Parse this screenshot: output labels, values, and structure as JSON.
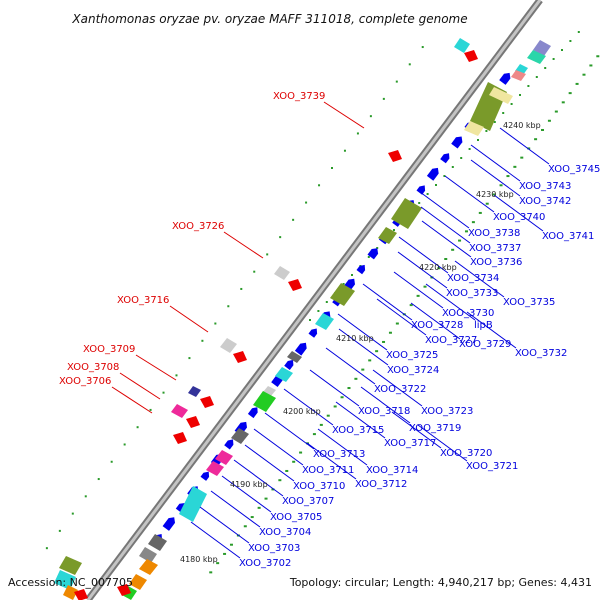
{
  "header": {
    "title": "Xanthomonas oryzae pv. oryzae MAFF 311018, complete genome"
  },
  "footer": {
    "accession": "Accession: NC_007705",
    "summary": "Topology: circular; Length: 4,940,217 bp; Genes: 4,431"
  },
  "colors": {
    "backbone": "#999999",
    "forward_arrow": "#0000ee",
    "forward_label": "#0000dd",
    "reverse_arrow": "#ee0000",
    "reverse_label": "#dd0000",
    "tick": "#2a9a2a",
    "olive": "#7a9a2a",
    "khaki": "#f0e6a0",
    "cyan": "#2ad6d6",
    "magenta": "#ee2a9a",
    "gray": "#888888",
    "green": "#22cc22"
  },
  "icons": {
    "forward": "right-arrow-icon",
    "reverse": "left-arrow-icon"
  },
  "kbp_marks": [
    {
      "text": "4240 kbp"
    },
    {
      "text": "4230 kbp"
    },
    {
      "text": "4220 kbp"
    },
    {
      "text": "4210 kbp"
    },
    {
      "text": "4200 kbp"
    },
    {
      "text": "4190 kbp"
    },
    {
      "text": "4180 kbp"
    }
  ],
  "reverse_labels": [
    {
      "text": "XOO_3739"
    },
    {
      "text": "XOO_3726"
    },
    {
      "text": "XOO_3716"
    },
    {
      "text": "XOO_3709"
    },
    {
      "text": "XOO_3708"
    },
    {
      "text": "XOO_3706"
    }
  ],
  "forward_labels": [
    {
      "text": "XOO_3745"
    },
    {
      "text": "XOO_3743"
    },
    {
      "text": "XOO_3742"
    },
    {
      "text": "XOO_3740"
    },
    {
      "text": "XOO_3741"
    },
    {
      "text": "XOO_3738"
    },
    {
      "text": "XOO_3737"
    },
    {
      "text": "XOO_3736"
    },
    {
      "text": "XOO_3734"
    },
    {
      "text": "XOO_3733"
    },
    {
      "text": "XOO_3735"
    },
    {
      "text": "XOO_3730"
    },
    {
      "text": "XOO_3728"
    },
    {
      "text": "lipB"
    },
    {
      "text": "XOO_3727"
    },
    {
      "text": "XOO_3729"
    },
    {
      "text": "XOO_3725"
    },
    {
      "text": "XOO_3732"
    },
    {
      "text": "XOO_3724"
    },
    {
      "text": "XOO_3722"
    },
    {
      "text": "XOO_3718"
    },
    {
      "text": "XOO_3723"
    },
    {
      "text": "XOO_3719"
    },
    {
      "text": "XOO_3715"
    },
    {
      "text": "XOO_3717"
    },
    {
      "text": "XOO_3713"
    },
    {
      "text": "XOO_3720"
    },
    {
      "text": "XOO_3711"
    },
    {
      "text": "XOO_3714"
    },
    {
      "text": "XOO_3721"
    },
    {
      "text": "XOO_3710"
    },
    {
      "text": "XOO_3712"
    },
    {
      "text": "XOO_3707"
    },
    {
      "text": "XOO_3705"
    },
    {
      "text": "XOO_3704"
    },
    {
      "text": "XOO_3703"
    },
    {
      "text": "XOO_3702"
    }
  ]
}
